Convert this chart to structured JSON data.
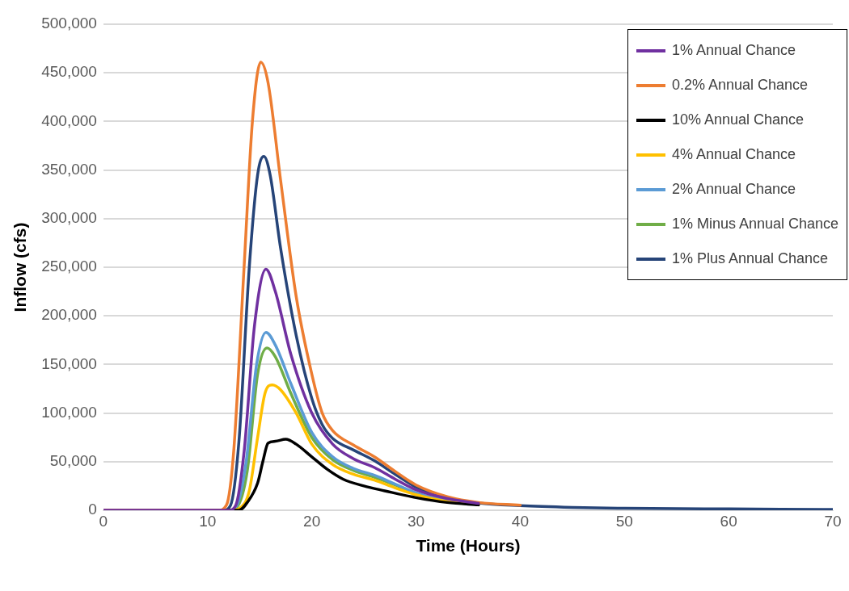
{
  "chart_data": {
    "type": "line",
    "xlabel": "Time (Hours)",
    "ylabel": "Inflow (cfs)",
    "xlim": [
      0,
      70
    ],
    "xticks": [
      0,
      10,
      20,
      30,
      40,
      50,
      60,
      70
    ],
    "ylim": [
      0,
      500000
    ],
    "yticks": [
      0,
      {
        "value": 50000,
        "label": "50,000"
      },
      {
        "value": 100000,
        "label": "100,000"
      },
      {
        "value": 150000,
        "label": "150,000"
      },
      {
        "value": 200000,
        "label": "200,000"
      },
      {
        "value": 250000,
        "label": "250,000"
      },
      {
        "value": 300000,
        "label": "300,000"
      },
      {
        "value": 350000,
        "label": "350,000"
      },
      {
        "value": 400000,
        "label": "400,000"
      },
      {
        "value": 450000,
        "label": "450,000"
      },
      {
        "value": 500000,
        "label": "500,000"
      }
    ],
    "grid": "y",
    "legend": "top right",
    "marker": "none",
    "line_style": "solid",
    "series": [
      {
        "name": "1% Annual Chance",
        "color": "#7030a0",
        "x": [
          0,
          12,
          12.7,
          13.5,
          14.5,
          15.6,
          16.5,
          18,
          20,
          22,
          24,
          26,
          28,
          30,
          33,
          36
        ],
        "values": [
          0,
          0,
          5000,
          60000,
          190000,
          248000,
          225000,
          160000,
          100000,
          68000,
          53000,
          44000,
          32000,
          21000,
          12000,
          7000
        ]
      },
      {
        "name": "0.2% Annual Chance",
        "color": "#ed7d31",
        "x": [
          0,
          11,
          11.8,
          12.5,
          13.5,
          14.3,
          15.1,
          15.8,
          17,
          18.5,
          20,
          21,
          22,
          24,
          26,
          28,
          30,
          33,
          36,
          40
        ],
        "values": [
          0,
          0,
          5000,
          60000,
          250000,
          400000,
          461000,
          440000,
          340000,
          220000,
          140000,
          100000,
          82000,
          67000,
          55000,
          40000,
          26000,
          14000,
          8000,
          5200
        ]
      },
      {
        "name": "10% Annual Chance",
        "color": "#000000",
        "x": [
          0,
          13,
          13.8,
          14.8,
          15.3,
          15.8,
          16.5,
          17.5,
          18.5,
          20,
          21.5,
          23,
          25,
          27,
          30,
          33,
          36
        ],
        "values": [
          0,
          0,
          8000,
          28000,
          50000,
          69000,
          71000,
          73000,
          68000,
          55000,
          42000,
          32000,
          25000,
          20000,
          13000,
          8000,
          5500
        ]
      },
      {
        "name": "4% Annual Chance",
        "color": "#ffc000",
        "x": [
          0,
          12.3,
          13.2,
          14,
          14.8,
          15.5,
          16.2,
          17,
          18.5,
          20,
          22,
          24,
          26,
          28,
          30,
          33,
          36
        ],
        "values": [
          0,
          0,
          3000,
          20000,
          75000,
          120000,
          129000,
          124000,
          100000,
          68000,
          47000,
          37000,
          31000,
          23000,
          16000,
          9000,
          6000
        ]
      },
      {
        "name": "2% Annual Chance",
        "color": "#5b9bd5",
        "x": [
          0,
          12,
          12.8,
          13.7,
          14.7,
          15.6,
          16.5,
          18,
          20,
          22,
          24,
          26,
          28,
          30,
          33,
          36
        ],
        "values": [
          0,
          0,
          5000,
          50000,
          150000,
          183000,
          170000,
          130000,
          80000,
          55000,
          43000,
          36000,
          27000,
          18000,
          10000,
          6500
        ]
      },
      {
        "name": "1% Minus Annual Chance",
        "color": "#70ad47",
        "x": [
          0,
          12,
          12.8,
          13.8,
          14.8,
          15.7,
          16.5,
          18,
          20,
          22,
          24,
          26,
          28,
          30,
          33,
          36
        ],
        "values": [
          0,
          0,
          3000,
          40000,
          140000,
          167000,
          158000,
          120000,
          75000,
          52000,
          41000,
          34000,
          26000,
          17000,
          9500,
          6200
        ]
      },
      {
        "name": "1% Plus Annual Chance",
        "color": "#264478",
        "x": [
          0,
          11.5,
          12.2,
          13,
          14,
          14.8,
          15.4,
          16,
          17,
          18.5,
          20,
          21,
          22,
          24,
          26,
          28,
          30,
          33,
          36,
          40,
          45,
          50,
          60,
          70
        ],
        "values": [
          0,
          0,
          5000,
          70000,
          250000,
          345000,
          364000,
          345000,
          270000,
          180000,
          115000,
          88000,
          74000,
          62000,
          51000,
          37000,
          24000,
          13000,
          7500,
          4800,
          3000,
          2000,
          1400,
          800
        ]
      }
    ]
  }
}
